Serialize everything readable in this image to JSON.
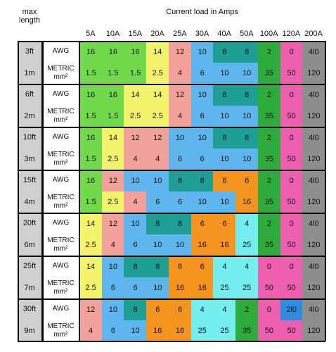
{
  "header": {
    "corner": "max length",
    "title": "Current load in Amps",
    "columns": [
      "5A",
      "10A",
      "15A",
      "20A",
      "25A",
      "30A",
      "40A",
      "50A",
      "100A",
      "120A",
      "200A"
    ]
  },
  "groups": [
    {
      "feet": "3ft",
      "meters": "1m",
      "awg_label": "AWG",
      "metric_label": "METRIC mm²",
      "awg": [
        16,
        16,
        16,
        14,
        12,
        10,
        8,
        8,
        2,
        0,
        "4l0"
      ],
      "metric": [
        1.5,
        1.5,
        1.5,
        2.5,
        4,
        6,
        10,
        10,
        35,
        50,
        120
      ]
    },
    {
      "feet": "6ft",
      "meters": "2m",
      "awg_label": "AWG",
      "metric_label": "METRIC mm²",
      "awg": [
        16,
        16,
        14,
        14,
        12,
        10,
        8,
        8,
        2,
        0,
        "4l0"
      ],
      "metric": [
        1.5,
        1.5,
        2.5,
        2.5,
        4,
        6,
        10,
        10,
        35,
        50,
        120
      ]
    },
    {
      "feet": "10ft",
      "meters": "3m",
      "awg_label": "AWG",
      "metric_label": "METRIC mm²",
      "awg": [
        16,
        14,
        12,
        12,
        10,
        10,
        8,
        8,
        2,
        0,
        "4l0"
      ],
      "metric": [
        1.5,
        2.5,
        4,
        4,
        6,
        6,
        10,
        10,
        35,
        50,
        120
      ]
    },
    {
      "feet": "15ft",
      "meters": "4m",
      "awg_label": "AWG",
      "metric_label": "METRIC mm²",
      "awg": [
        16,
        12,
        10,
        10,
        8,
        8,
        6,
        6,
        2,
        0,
        "4l0"
      ],
      "metric": [
        1.5,
        2.5,
        4,
        6,
        6,
        10,
        10,
        16,
        35,
        50,
        120
      ]
    },
    {
      "feet": "20ft",
      "meters": "6m",
      "awg_label": "AWG",
      "metric_label": "METRIC mm²",
      "awg": [
        14,
        12,
        10,
        8,
        8,
        6,
        6,
        4,
        2,
        0,
        "4l0"
      ],
      "metric": [
        2.5,
        4,
        6,
        10,
        10,
        16,
        16,
        25,
        35,
        50,
        120
      ]
    },
    {
      "feet": "25ft",
      "meters": "7m",
      "awg_label": "AWG",
      "metric_label": "METRIC mm²",
      "awg": [
        14,
        10,
        8,
        8,
        6,
        6,
        4,
        4,
        0,
        0,
        "4l0"
      ],
      "metric": [
        2.5,
        6,
        6,
        10,
        16,
        16,
        25,
        25,
        50,
        50,
        120
      ]
    },
    {
      "feet": "30ft",
      "meters": "9m",
      "awg_label": "AWG",
      "metric_label": "METRIC mm²",
      "awg": [
        12,
        10,
        8,
        6,
        6,
        4,
        4,
        2,
        0,
        "2l0",
        "4l0"
      ],
      "metric": [
        4,
        6,
        10,
        16,
        16,
        25,
        25,
        35,
        50,
        50,
        120
      ]
    }
  ],
  "cell_colors": {
    "16": "#72d94c",
    "1.5": "#72d94c",
    "14": "#f3f36c",
    "2.5": "#f3f36c",
    "12": "#f3a29b",
    "4": "#f3a29b",
    "10": "#5fb6ee",
    "6": "#5fb6ee",
    "8": "#1e9f96",
    "16m": "#f5951f",
    "25": "#74eeee",
    "2": "#2fab3b",
    "35": "#2fab3b",
    "0": "#ee5fb0",
    "50": "#ee5fb0",
    "2l0": "#2f8de0",
    "4l0": "#8e8e8e",
    "120": "#8e8e8e",
    "4awg": "#74eeee",
    "6awg": "#f5951f"
  }
}
